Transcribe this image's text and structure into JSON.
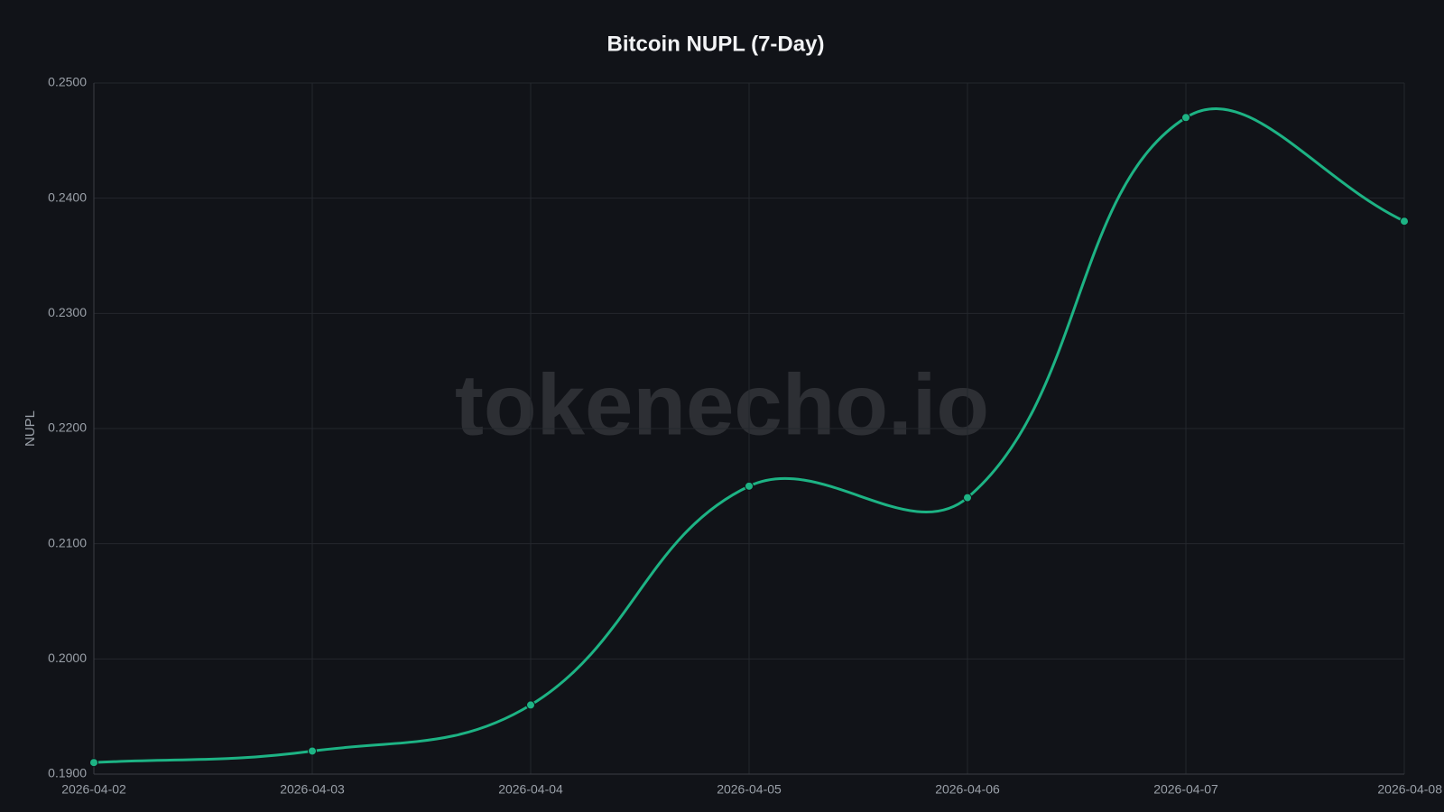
{
  "chart_data": {
    "type": "line",
    "title": "Bitcoin NUPL (7-Day)",
    "y_label": "NUPL",
    "watermark": "tokenecho.io",
    "x": [
      "2026-04-02",
      "2026-04-03",
      "2026-04-04",
      "2026-04-05",
      "2026-04-06",
      "2026-04-07",
      "2026-04-08"
    ],
    "series": [
      {
        "name": "NUPL",
        "color": "#1db384",
        "values": [
          0.191,
          0.192,
          0.196,
          0.215,
          0.214,
          0.247,
          0.238
        ]
      }
    ],
    "ylim": [
      0.19,
      0.25
    ],
    "yticks": [
      {
        "value": 0.19,
        "label": "0.1900"
      },
      {
        "value": 0.2,
        "label": "0.2000"
      },
      {
        "value": 0.21,
        "label": "0.2100"
      },
      {
        "value": 0.22,
        "label": "0.2200"
      },
      {
        "value": 0.23,
        "label": "0.2300"
      },
      {
        "value": 0.24,
        "label": "0.2400"
      },
      {
        "value": 0.25,
        "label": "0.2500"
      }
    ],
    "grid": true
  }
}
